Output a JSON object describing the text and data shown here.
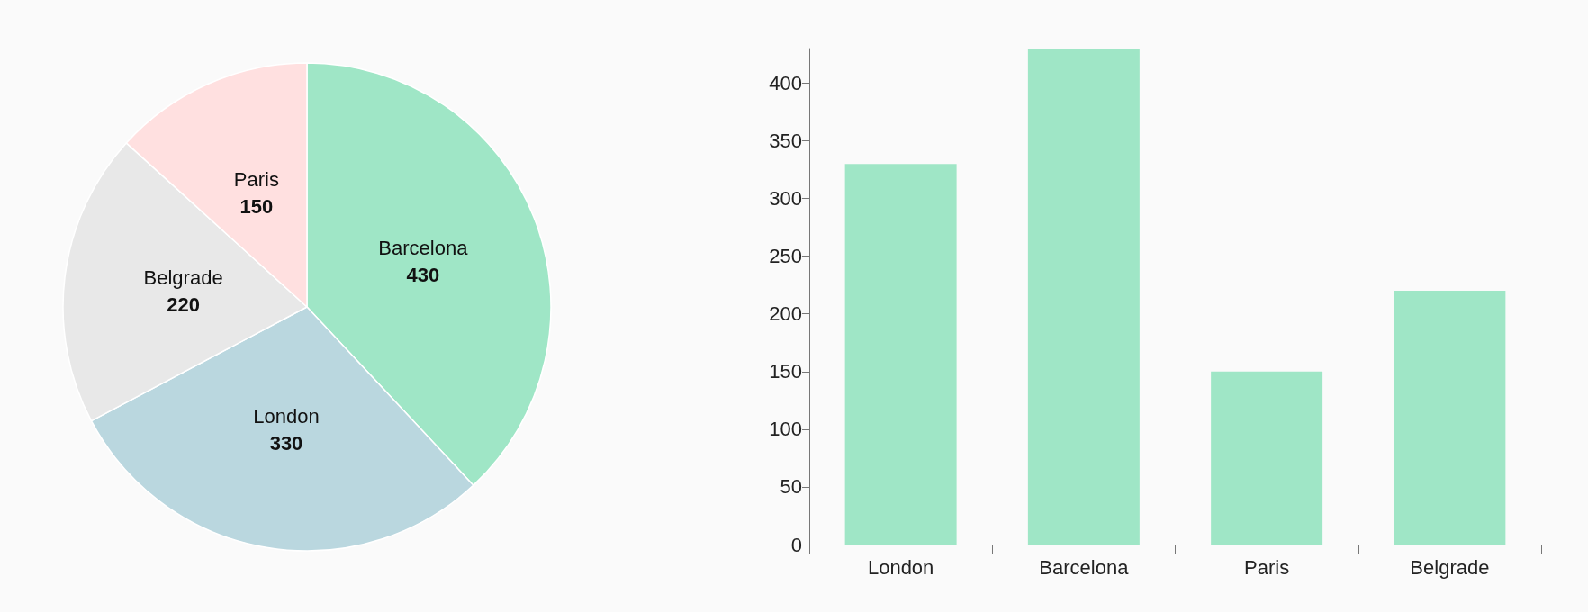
{
  "chart_data": [
    {
      "type": "pie",
      "categories": [
        "Barcelona",
        "London",
        "Belgrade",
        "Paris"
      ],
      "values": [
        430,
        330,
        220,
        150
      ],
      "colors": [
        "#9fe6c6",
        "#bad7df",
        "#e8e8e8",
        "#ffe0e0"
      ],
      "data_labels": true,
      "legend": false
    },
    {
      "type": "bar",
      "categories": [
        "London",
        "Barcelona",
        "Paris",
        "Belgrade"
      ],
      "values": [
        330,
        430,
        150,
        220
      ],
      "color": "#9fe6c6",
      "ylim": [
        0,
        430
      ],
      "yticks": [
        0,
        50,
        100,
        150,
        200,
        250,
        300,
        350,
        400
      ],
      "grid": false,
      "legend": false
    }
  ]
}
